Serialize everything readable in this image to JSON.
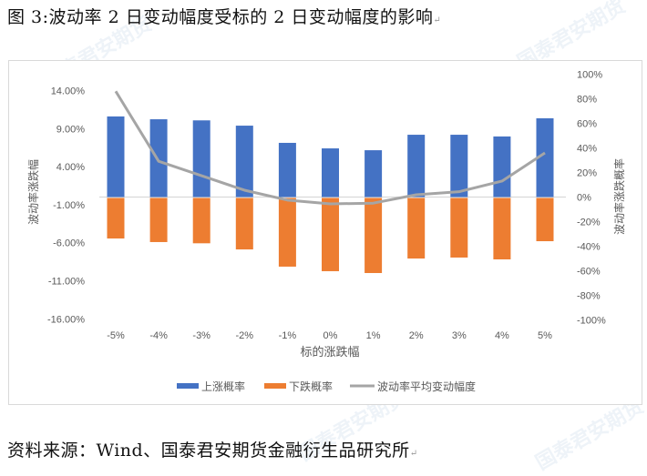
{
  "caption": "图 3:波动率 2 日变动幅度受标的 2 日变动幅度的影响",
  "source": "资料来源：Wind、国泰君安期货金融衍生品研究所",
  "watermark": "国泰君安期货",
  "colors": {
    "up": "#4472C4",
    "down": "#ED7D31",
    "line": "#A5A5A5",
    "axis_text": "#595959",
    "gridline": "#D9D9D9"
  },
  "chart_data": {
    "type": "bar",
    "title": "",
    "xlabel": "标的涨跌幅",
    "ylabel": "波动率涨跌幅",
    "y2label": "波动率涨跌概率",
    "categories": [
      "-5%",
      "-4%",
      "-3%",
      "-2%",
      "-1%",
      "0%",
      "1%",
      "2%",
      "3%",
      "4%",
      "5%"
    ],
    "yticks": [
      "14.00%",
      "9.00%",
      "4.00%",
      "-1.00%",
      "-6.00%",
      "-11.00%",
      "-16.00%"
    ],
    "ylim": [
      -16,
      14
    ],
    "y2ticks": [
      "100%",
      "80%",
      "60%",
      "40%",
      "20%",
      "0%",
      "-20%",
      "-40%",
      "-60%",
      "-80%",
      "-100%"
    ],
    "y2lim": [
      -100,
      100
    ],
    "series": [
      {
        "name": "上涨概率",
        "type": "bar",
        "axis": "right",
        "values": [
          65.6,
          63.3,
          62.4,
          58.1,
          44.1,
          39.6,
          38.1,
          50.7,
          50.7,
          49.3,
          64.1
        ]
      },
      {
        "name": "下跌概率",
        "type": "bar",
        "axis": "right",
        "values": [
          -33.0,
          -35.9,
          -36.9,
          -41.9,
          -55.9,
          -59.6,
          -61.1,
          -49.3,
          -48.5,
          -50.0,
          -35.2
        ]
      },
      {
        "name": "波动率平均变动幅度",
        "type": "line",
        "axis": "left",
        "values": [
          13.9,
          4.7,
          2.8,
          0.9,
          -0.4,
          -0.9,
          -0.8,
          0.3,
          0.7,
          2.1,
          5.8
        ]
      }
    ],
    "legend": [
      "上涨概率",
      "下跌概率",
      "波动率平均变动幅度"
    ],
    "legend_position": "bottom",
    "grid": false
  }
}
